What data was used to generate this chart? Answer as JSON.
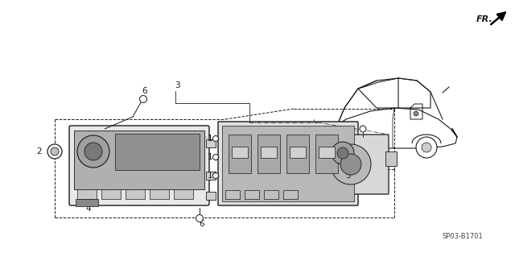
{
  "background_color": "#ffffff",
  "line_color": "#1a1a1a",
  "diagram_code": "SP03-B1701",
  "fr_label": "FR.",
  "fig_width": 6.4,
  "fig_height": 3.19,
  "dpi": 100
}
